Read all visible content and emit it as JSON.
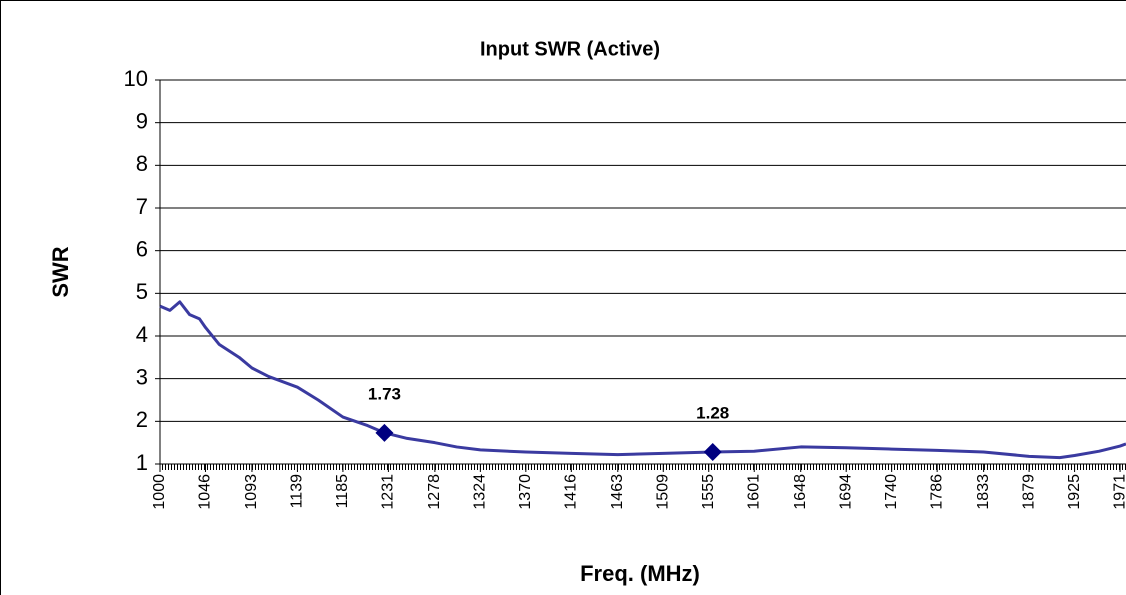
{
  "chart_data": {
    "type": "line",
    "title": "Input SWR (Active)",
    "ylabel": "SWR",
    "xlabel": "Freq. (MHz)",
    "ylim": [
      1,
      10
    ],
    "yticks": [
      1,
      2,
      3,
      4,
      5,
      6,
      7,
      8,
      9,
      10
    ],
    "xlim": [
      1000,
      1977
    ],
    "xticks": [
      1000,
      1046,
      1093,
      1139,
      1185,
      1231,
      1278,
      1324,
      1370,
      1416,
      1463,
      1509,
      1555,
      1601,
      1648,
      1694,
      1740,
      1786,
      1833,
      1879,
      1925,
      1971
    ],
    "grid": true,
    "series": [
      {
        "color": "#3a3aa0",
        "x": [
          1000,
          1010,
          1020,
          1030,
          1040,
          1046,
          1060,
          1080,
          1093,
          1110,
          1139,
          1160,
          1185,
          1210,
          1227,
          1250,
          1278,
          1300,
          1324,
          1370,
          1416,
          1463,
          1509,
          1559,
          1601,
          1648,
          1694,
          1740,
          1786,
          1833,
          1879,
          1910,
          1925,
          1950,
          1971,
          1977
        ],
        "values": [
          4.7,
          4.6,
          4.8,
          4.5,
          4.4,
          4.2,
          3.8,
          3.5,
          3.25,
          3.05,
          2.8,
          2.5,
          2.1,
          1.9,
          1.73,
          1.6,
          1.5,
          1.4,
          1.33,
          1.28,
          1.25,
          1.22,
          1.25,
          1.28,
          1.3,
          1.4,
          1.38,
          1.35,
          1.32,
          1.28,
          1.18,
          1.15,
          1.2,
          1.3,
          1.42,
          1.47
        ]
      }
    ],
    "markers": {
      "color": "#000080",
      "x": [
        1227,
        1559
      ],
      "values": [
        1.73,
        1.28
      ]
    }
  }
}
